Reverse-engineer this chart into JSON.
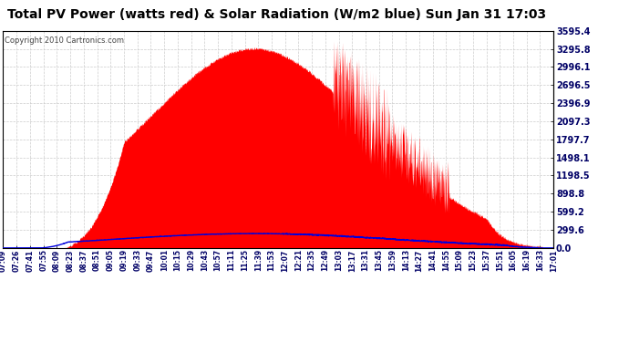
{
  "title": "Total PV Power (watts red) & Solar Radiation (W/m2 blue) Sun Jan 31 17:03",
  "copyright": "Copyright 2010 Cartronics.com",
  "yticks": [
    0.0,
    299.6,
    599.2,
    898.8,
    1198.5,
    1498.1,
    1797.7,
    2097.3,
    2396.9,
    2696.5,
    2996.1,
    3295.8,
    3595.4
  ],
  "ytick_labels": [
    "0.0",
    "299.6",
    "599.2",
    "898.8",
    "1198.5",
    "1498.1",
    "1797.7",
    "2097.3",
    "2396.9",
    "2696.5",
    "2996.1",
    "3295.8",
    "3595.4"
  ],
  "ylim": [
    0.0,
    3595.4
  ],
  "x_tick_labels": [
    "07:09",
    "07:26",
    "07:41",
    "07:55",
    "08:09",
    "08:23",
    "08:37",
    "08:51",
    "09:05",
    "09:19",
    "09:33",
    "09:47",
    "10:01",
    "10:15",
    "10:29",
    "10:43",
    "10:57",
    "11:11",
    "11:25",
    "11:39",
    "11:53",
    "12:07",
    "12:21",
    "12:35",
    "12:49",
    "13:03",
    "13:17",
    "13:31",
    "13:45",
    "13:59",
    "14:13",
    "14:27",
    "14:41",
    "14:55",
    "15:09",
    "15:23",
    "15:37",
    "15:51",
    "16:05",
    "16:19",
    "16:33",
    "17:01"
  ],
  "bg_color": "#ffffff",
  "plot_bg": "#ffffff",
  "grid_color": "#cccccc",
  "fill_color": "#ff0000",
  "line_color": "#0000dd",
  "title_fontsize": 10,
  "copyright_fontsize": 6,
  "tick_label_fontsize": 5.5,
  "ytick_fontsize": 7,
  "border_color": "#000000"
}
